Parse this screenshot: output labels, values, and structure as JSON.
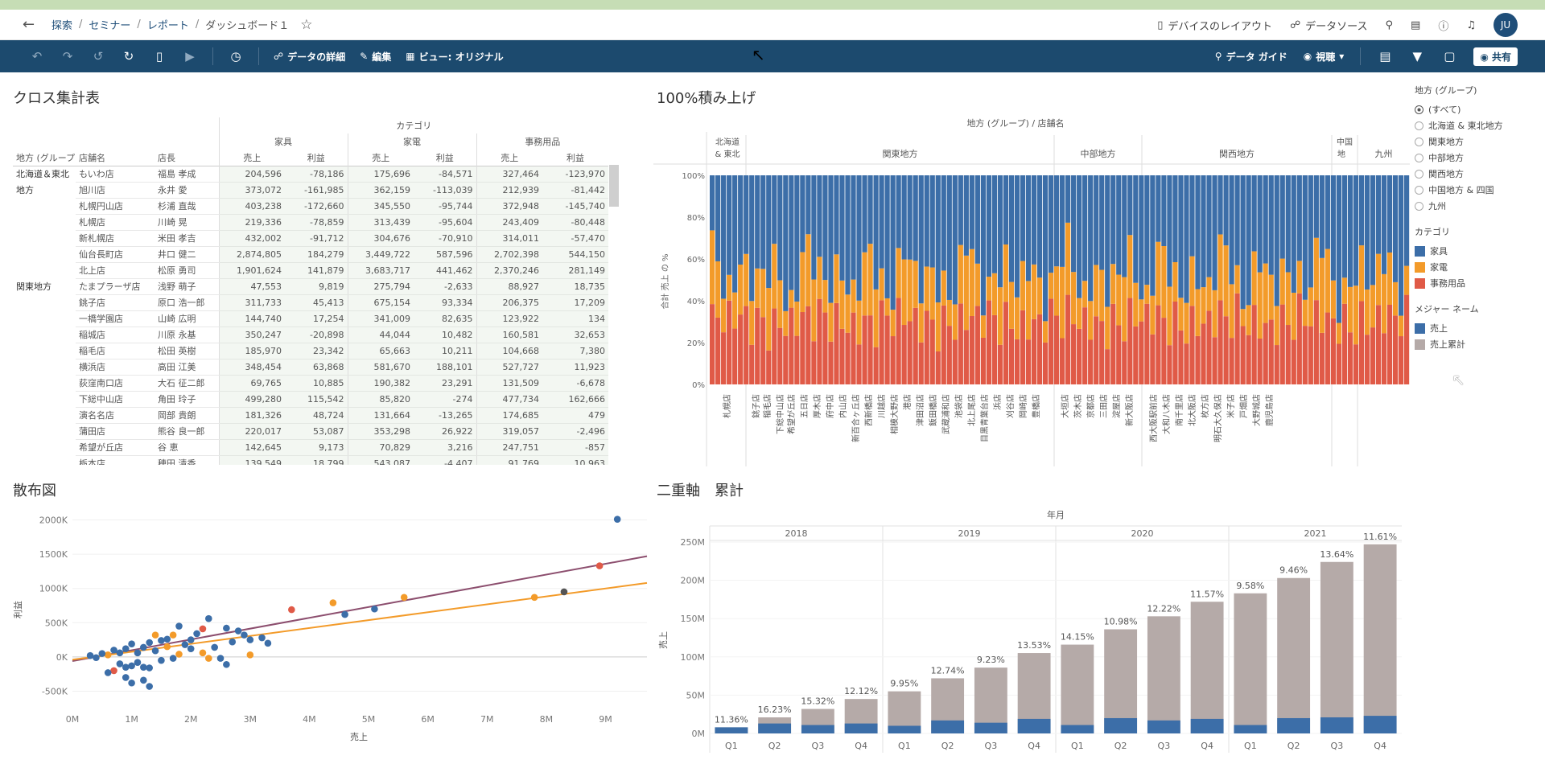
{
  "breadcrumb": {
    "items": [
      "探索",
      "セミナー",
      "レポート"
    ],
    "current": "ダッシュボード１"
  },
  "header_right": {
    "device_layout": "デバイスのレイアウト",
    "data_source": "データソース",
    "avatar": "JU"
  },
  "toolbar": {
    "data_detail": "データの詳細",
    "edit": "編集",
    "view": "ビュー: オリジナル",
    "data_guide": "データ ガイド",
    "watch": "視聴",
    "share": "共有"
  },
  "crosstab": {
    "title": "クロス集計表",
    "category_label": "カテゴリ",
    "categories": [
      "家具",
      "家電",
      "事務用品"
    ],
    "measures": [
      "売上",
      "利益"
    ],
    "row_headers": [
      "地方 (グループ)",
      "店舗名",
      "店長"
    ],
    "rows": [
      {
        "region": "北海道＆東北",
        "store": "もいわ店",
        "manager": "福島 孝成",
        "v": [
          "204,596",
          "-78,186",
          "175,696",
          "-84,571",
          "327,464",
          "-123,970"
        ]
      },
      {
        "region": "地方",
        "store": "旭川店",
        "manager": "永井 愛",
        "v": [
          "373,072",
          "-161,985",
          "362,159",
          "-113,039",
          "212,939",
          "-81,442"
        ]
      },
      {
        "region": "",
        "store": "札幌円山店",
        "manager": "杉浦 直哉",
        "v": [
          "403,238",
          "-172,660",
          "345,550",
          "-95,744",
          "372,948",
          "-145,740"
        ]
      },
      {
        "region": "",
        "store": "札幌店",
        "manager": "川崎 晃",
        "v": [
          "219,336",
          "-78,859",
          "313,439",
          "-95,604",
          "243,409",
          "-80,448"
        ]
      },
      {
        "region": "",
        "store": "新札幌店",
        "manager": "米田 孝吉",
        "v": [
          "432,002",
          "-91,712",
          "304,676",
          "-70,910",
          "314,011",
          "-57,470"
        ]
      },
      {
        "region": "",
        "store": "仙台長町店",
        "manager": "井口 健二",
        "v": [
          "2,874,805",
          "184,279",
          "3,449,722",
          "587,596",
          "2,702,398",
          "544,150"
        ]
      },
      {
        "region": "",
        "store": "北上店",
        "manager": "松原 勇司",
        "v": [
          "1,901,624",
          "141,879",
          "3,683,717",
          "441,462",
          "2,370,246",
          "281,149"
        ]
      },
      {
        "region": "関東地方",
        "store": "たまプラーザ店",
        "manager": "浅野 萌子",
        "v": [
          "47,553",
          "9,819",
          "275,794",
          "-2,633",
          "88,927",
          "18,735"
        ]
      },
      {
        "region": "",
        "store": "銚子店",
        "manager": "原口 浩一郎",
        "v": [
          "311,733",
          "45,413",
          "675,154",
          "93,334",
          "206,375",
          "17,209"
        ]
      },
      {
        "region": "",
        "store": "一橋学園店",
        "manager": "山崎 広明",
        "v": [
          "144,740",
          "17,254",
          "341,009",
          "82,635",
          "123,922",
          "134"
        ]
      },
      {
        "region": "",
        "store": "稲城店",
        "manager": "川原 永基",
        "v": [
          "350,247",
          "-20,898",
          "44,044",
          "10,482",
          "160,581",
          "32,653"
        ]
      },
      {
        "region": "",
        "store": "稲毛店",
        "manager": "松田 英樹",
        "v": [
          "185,970",
          "23,342",
          "65,663",
          "10,211",
          "104,668",
          "7,380"
        ]
      },
      {
        "region": "",
        "store": "横浜店",
        "manager": "高田 江美",
        "v": [
          "348,454",
          "63,868",
          "581,670",
          "188,101",
          "527,727",
          "11,923"
        ]
      },
      {
        "region": "",
        "store": "荻窪南口店",
        "manager": "大石 征二郎",
        "v": [
          "69,765",
          "10,885",
          "190,382",
          "23,291",
          "131,509",
          "-6,678"
        ]
      },
      {
        "region": "",
        "store": "下総中山店",
        "manager": "角田 玲子",
        "v": [
          "499,280",
          "115,542",
          "85,820",
          "-274",
          "477,734",
          "162,666"
        ]
      },
      {
        "region": "",
        "store": "演名名店",
        "manager": "岡部 貴朗",
        "v": [
          "181,326",
          "48,724",
          "131,664",
          "-13,265",
          "174,685",
          "479"
        ]
      },
      {
        "region": "",
        "store": "蒲田店",
        "manager": "熊谷 良一郎",
        "v": [
          "220,017",
          "53,087",
          "353,298",
          "26,922",
          "319,057",
          "-2,496"
        ]
      },
      {
        "region": "",
        "store": "希望が丘店",
        "manager": "谷 恵",
        "v": [
          "142,645",
          "9,173",
          "70,829",
          "3,216",
          "247,751",
          "-857"
        ]
      },
      {
        "region": "",
        "store": "栃本店",
        "manager": "穂田 清香",
        "v": [
          "139,549",
          "18,799",
          "543,087",
          "-4,407",
          "91,769",
          "10,963"
        ]
      }
    ]
  },
  "stacked": {
    "title": "100%積み上げ",
    "header": "地方 (グループ) / 店舗名",
    "ylabel": "合計 売上 の %",
    "yticks": [
      "0%",
      "20%",
      "40%",
      "60%",
      "80%",
      "100%"
    ],
    "regions": [
      "北海道 & 東北",
      "関東地方",
      "中部地方",
      "関西地方",
      "中国",
      "九州"
    ],
    "region_sub": "地",
    "store_labels": [
      "札幌店",
      "銚子店",
      "稲毛店",
      "下総中山店",
      "希望が丘店",
      "五日店",
      "厚木店",
      "府中店",
      "内山店",
      "新百合ヶ丘店",
      "西新橋店",
      "川越店",
      "相模大野店",
      "港店",
      "津田沼店",
      "飯田橋店",
      "武蔵浦和店",
      "池袋店",
      "北上尾店",
      "目黒青葉台店",
      "浜店",
      "刈谷店",
      "岡崎店",
      "豊橋店",
      "大垣店",
      "茨木店",
      "京都店",
      "三田店",
      "淀屋店",
      "新大阪店",
      "西大阪駅前店",
      "大和八木店",
      "南千里店",
      "北大阪店",
      "枚方店",
      "明石大久保店",
      "米子店",
      "戸畑店",
      "大野城店",
      "鹿児島店"
    ],
    "colors": {
      "furniture": "#3c6ea8",
      "appliance": "#f39b2a",
      "office": "#e05a47"
    }
  },
  "legend": {
    "region_title": "地方 (グループ)",
    "region_options": [
      "(すべて)",
      "北海道 & 東北地方",
      "関東地方",
      "中部地方",
      "関西地方",
      "中国地方 & 四国",
      "九州"
    ],
    "category_title": "カテゴリ",
    "category_items": [
      {
        "label": "家具",
        "color": "#3c6ea8"
      },
      {
        "label": "家電",
        "color": "#f39b2a"
      },
      {
        "label": "事務用品",
        "color": "#e05a47"
      }
    ],
    "measure_title": "メジャー ネーム",
    "measure_items": [
      {
        "label": "売上",
        "color": "#3c6ea8"
      },
      {
        "label": "売上累計",
        "color": "#b5aaa8"
      }
    ]
  },
  "scatter": {
    "title": "散布図",
    "xlabel": "売上",
    "ylabel": "利益",
    "xticks": [
      "0M",
      "1M",
      "2M",
      "3M",
      "4M",
      "5M",
      "6M",
      "7M",
      "8M",
      "9M"
    ],
    "yticks": [
      "-500K",
      "0K",
      "500K",
      "1000K",
      "1500K",
      "2000K"
    ]
  },
  "dual": {
    "title": "二重軸　累計",
    "header": "年月",
    "years": [
      "2018",
      "2019",
      "2020",
      "2021"
    ],
    "quarters": [
      "Q1",
      "Q2",
      "Q3",
      "Q4"
    ],
    "ylabel": "売上",
    "yticks": [
      "0M",
      "50M",
      "100M",
      "150M",
      "200M",
      "250M"
    ]
  },
  "chart_data": [
    {
      "type": "bar",
      "title": "二重軸　累計",
      "xlabel": "年月",
      "ylabel": "売上",
      "categories": [
        "2018 Q1",
        "2018 Q2",
        "2018 Q3",
        "2018 Q4",
        "2019 Q1",
        "2019 Q2",
        "2019 Q3",
        "2019 Q4",
        "2020 Q1",
        "2020 Q2",
        "2020 Q3",
        "2020 Q4",
        "2021 Q1",
        "2021 Q2",
        "2021 Q3",
        "2021 Q4"
      ],
      "ylim": [
        0,
        250
      ],
      "series": [
        {
          "name": "売上",
          "values": [
            8,
            13,
            11,
            13,
            10,
            17,
            14,
            19,
            11,
            20,
            17,
            19,
            11,
            20,
            21,
            23
          ]
        },
        {
          "name": "売上累計",
          "values": [
            8,
            21,
            32,
            45,
            55,
            72,
            86,
            105,
            116,
            136,
            153,
            172,
            183,
            203,
            224,
            247
          ]
        }
      ],
      "labels": [
        "11.36%",
        "16.23%",
        "15.32%",
        "12.12%",
        "9.95%",
        "12.74%",
        "9.23%",
        "13.53%",
        "14.15%",
        "10.98%",
        "12.22%",
        "11.57%",
        "9.58%",
        "9.46%",
        "13.64%",
        "11.61%"
      ]
    },
    {
      "type": "scatter",
      "title": "散布図",
      "xlabel": "売上",
      "ylabel": "利益",
      "xlim": [
        0,
        9.7
      ],
      "ylim": [
        -600,
        2100
      ],
      "trend_lines": [
        {
          "color": "#8c4e6e",
          "x": [
            0,
            9.7
          ],
          "y": [
            -60,
            1470
          ]
        },
        {
          "color": "#f39b2a",
          "x": [
            0,
            9.7
          ],
          "y": [
            -40,
            1080
          ]
        }
      ],
      "points": [
        [
          9.2,
          2010,
          "#3c6ea8"
        ],
        [
          8.9,
          1330,
          "#e05a47"
        ],
        [
          8.3,
          950,
          "#555"
        ],
        [
          7.8,
          870,
          "#f39b2a"
        ],
        [
          5.6,
          870,
          "#f39b2a"
        ],
        [
          4.4,
          790,
          "#f39b2a"
        ],
        [
          3.7,
          690,
          "#e05a47"
        ],
        [
          5.1,
          700,
          "#3c6ea8"
        ],
        [
          4.6,
          620,
          "#3c6ea8"
        ],
        [
          2.8,
          380,
          "#3c6ea8"
        ],
        [
          3.0,
          250,
          "#3c6ea8"
        ],
        [
          2.9,
          320,
          "#3c6ea8"
        ],
        [
          3.2,
          280,
          "#3c6ea8"
        ],
        [
          3.3,
          200,
          "#3c6ea8"
        ],
        [
          2.6,
          420,
          "#3c6ea8"
        ],
        [
          2.7,
          220,
          "#3c6ea8"
        ],
        [
          3.0,
          30,
          "#f39b2a"
        ],
        [
          2.6,
          -110,
          "#3c6ea8"
        ],
        [
          2.5,
          -20,
          "#3c6ea8"
        ],
        [
          2.3,
          560,
          "#3c6ea8"
        ],
        [
          2.2,
          410,
          "#e05a47"
        ],
        [
          2.1,
          340,
          "#3c6ea8"
        ],
        [
          2.0,
          250,
          "#3c6ea8"
        ],
        [
          1.9,
          180,
          "#3c6ea8"
        ],
        [
          2.0,
          120,
          "#3c6ea8"
        ],
        [
          2.2,
          60,
          "#f39b2a"
        ],
        [
          2.4,
          140,
          "#3c6ea8"
        ],
        [
          2.3,
          -20,
          "#f39b2a"
        ],
        [
          1.8,
          450,
          "#3c6ea8"
        ],
        [
          1.7,
          320,
          "#f39b2a"
        ],
        [
          1.6,
          260,
          "#3c6ea8"
        ],
        [
          1.5,
          240,
          "#3c6ea8"
        ],
        [
          1.4,
          320,
          "#f39b2a"
        ],
        [
          1.3,
          210,
          "#3c6ea8"
        ],
        [
          1.6,
          150,
          "#f39b2a"
        ],
        [
          1.4,
          90,
          "#3c6ea8"
        ],
        [
          1.2,
          140,
          "#3c6ea8"
        ],
        [
          1.1,
          60,
          "#3c6ea8"
        ],
        [
          1.0,
          190,
          "#3c6ea8"
        ],
        [
          0.9,
          120,
          "#3c6ea8"
        ],
        [
          0.8,
          60,
          "#3c6ea8"
        ],
        [
          0.7,
          100,
          "#3c6ea8"
        ],
        [
          0.6,
          30,
          "#f39b2a"
        ],
        [
          0.5,
          50,
          "#3c6ea8"
        ],
        [
          0.4,
          -10,
          "#3c6ea8"
        ],
        [
          0.3,
          20,
          "#3c6ea8"
        ],
        [
          1.2,
          -150,
          "#3c6ea8"
        ],
        [
          1.3,
          -160,
          "#3c6ea8"
        ],
        [
          1.1,
          -80,
          "#3c6ea8"
        ],
        [
          1.0,
          -130,
          "#3c6ea8"
        ],
        [
          0.9,
          -150,
          "#3c6ea8"
        ],
        [
          0.8,
          -100,
          "#3c6ea8"
        ],
        [
          0.7,
          -200,
          "#e05a47"
        ],
        [
          0.6,
          -230,
          "#3c6ea8"
        ],
        [
          0.9,
          -300,
          "#3c6ea8"
        ],
        [
          1.0,
          -380,
          "#3c6ea8"
        ],
        [
          1.3,
          -430,
          "#3c6ea8"
        ],
        [
          1.2,
          -340,
          "#3c6ea8"
        ],
        [
          1.5,
          -50,
          "#3c6ea8"
        ],
        [
          1.7,
          -20,
          "#3c6ea8"
        ],
        [
          1.8,
          40,
          "#f39b2a"
        ]
      ]
    }
  ]
}
